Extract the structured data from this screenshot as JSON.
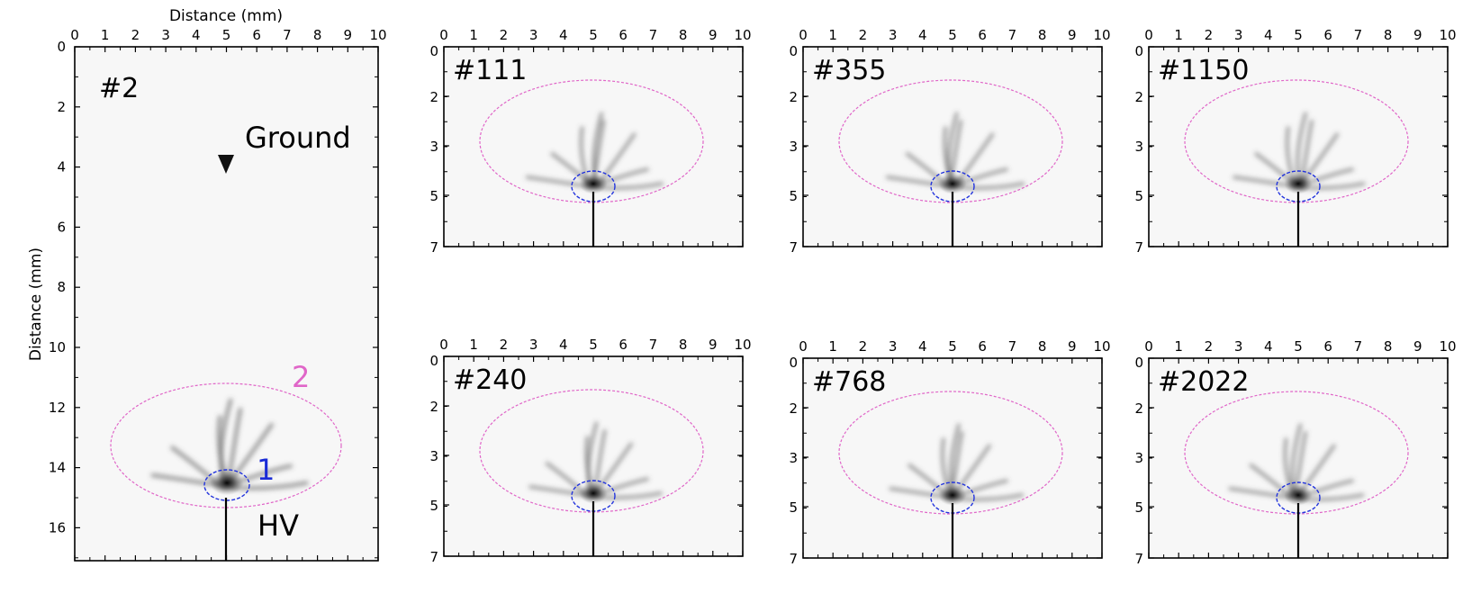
{
  "figure": {
    "x_axis_title": "Distance (mm)",
    "y_axis_title": "Distance (mm)",
    "colors": {
      "outer_ellipse": "#e066c8",
      "inner_ellipse": "#2233dd",
      "label_1": "#1a2bd6",
      "label_2": "#e066c8",
      "frame": "#000000",
      "streamer": "#000000"
    }
  },
  "main_panel": {
    "label": "#2",
    "x_ticks": [
      "0",
      "1",
      "2",
      "3",
      "4",
      "5",
      "6",
      "7",
      "8",
      "9",
      "10"
    ],
    "y_ticks": [
      "0",
      "2",
      "4",
      "6",
      "8",
      "10",
      "12",
      "14",
      "16"
    ],
    "ground_label": "Ground",
    "hv_label": "HV",
    "inner_region_label": "1",
    "outer_region_label": "2",
    "ground_marker_icon": "triangle-down-icon"
  },
  "panels": [
    {
      "label": "#111",
      "x_ticks": [
        "0",
        "1",
        "2",
        "3",
        "4",
        "5",
        "6",
        "7",
        "8",
        "9",
        "10"
      ],
      "y_ticks": [
        "0",
        "2",
        "3",
        "5",
        "7"
      ]
    },
    {
      "label": "#355",
      "x_ticks": [
        "0",
        "1",
        "2",
        "3",
        "4",
        "5",
        "6",
        "7",
        "8",
        "9",
        "10"
      ],
      "y_ticks": [
        "0",
        "2",
        "3",
        "5",
        "7"
      ]
    },
    {
      "label": "#1150",
      "x_ticks": [
        "0",
        "1",
        "2",
        "3",
        "4",
        "5",
        "6",
        "7",
        "8",
        "9",
        "10"
      ],
      "y_ticks": [
        "0",
        "2",
        "3",
        "5",
        "7"
      ]
    },
    {
      "label": "#240",
      "x_ticks": [
        "0",
        "1",
        "2",
        "3",
        "4",
        "5",
        "6",
        "7",
        "8",
        "9",
        "10"
      ],
      "y_ticks": [
        "0",
        "2",
        "3",
        "5",
        "7"
      ]
    },
    {
      "label": "#768",
      "x_ticks": [
        "0",
        "1",
        "2",
        "3",
        "4",
        "5",
        "6",
        "7",
        "8",
        "9",
        "10"
      ],
      "y_ticks": [
        "0",
        "2",
        "3",
        "5",
        "7"
      ]
    },
    {
      "label": "#2022",
      "x_ticks": [
        "0",
        "1",
        "2",
        "3",
        "4",
        "5",
        "6",
        "7",
        "8",
        "9",
        "10"
      ],
      "y_ticks": [
        "0",
        "2",
        "3",
        "5",
        "7"
      ]
    }
  ]
}
